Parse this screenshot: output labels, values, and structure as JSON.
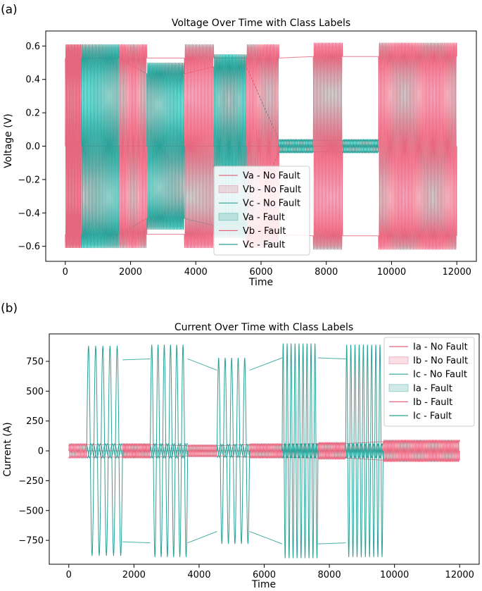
{
  "chart_data": [
    {
      "type": "line",
      "panel_label": "(a)",
      "title": "Voltage Over Time with Class Labels",
      "xlabel": "Time",
      "ylabel": "Voltage (V)",
      "xlim": [
        -600,
        12600
      ],
      "ylim": [
        -0.69,
        0.69
      ],
      "xticks": [
        0,
        2000,
        4000,
        6000,
        8000,
        10000,
        12000
      ],
      "xtick_labels": [
        "0",
        "2000",
        "4000",
        "6000",
        "8000",
        "10000",
        "12000"
      ],
      "yticks": [
        -0.6,
        -0.4,
        -0.2,
        0.0,
        0.2,
        0.4,
        0.6
      ],
      "ytick_labels": [
        "−0.6",
        "−0.4",
        "−0.2",
        "0.0",
        "0.2",
        "0.4",
        "0.6"
      ],
      "legend_position": "lower-center",
      "legend": [
        {
          "label": "Va - No Fault",
          "style": "line",
          "color": "#e5677f"
        },
        {
          "label": "Vb - No Fault",
          "style": "patch",
          "color": "#e5677f"
        },
        {
          "label": "Vc - No Fault",
          "style": "line",
          "color": "#2aa198"
        },
        {
          "label": "Va - Fault",
          "style": "patch",
          "color": "#2aa198"
        },
        {
          "label": "Vb - Fault",
          "style": "line",
          "color": "#e5677f"
        },
        {
          "label": "Vc - Fault",
          "style": "line",
          "color": "#2aa198"
        }
      ],
      "segments": [
        {
          "class": "No Fault",
          "x": [
            0,
            500
          ],
          "amplitude": 0.61,
          "cycles": 6
        },
        {
          "class": "Fault",
          "x": [
            500,
            1650
          ],
          "amplitude": 0.61,
          "cycles": 9
        },
        {
          "class": "No Fault",
          "x": [
            1650,
            2500
          ],
          "amplitude": 0.61,
          "cycles": 7
        },
        {
          "class": "Fault",
          "x": [
            2500,
            3650
          ],
          "amplitude": 0.5,
          "cycles": 9
        },
        {
          "class": "No Fault",
          "x": [
            3650,
            4550
          ],
          "amplitude": 0.61,
          "cycles": 7
        },
        {
          "class": "Fault",
          "x": [
            4550,
            5550
          ],
          "amplitude": 0.55,
          "cycles": 8
        },
        {
          "class": "No Fault",
          "x": [
            5550,
            6550
          ],
          "amplitude": 0.61,
          "cycles": 8
        },
        {
          "class": "Fault",
          "x": [
            6550,
            7600
          ],
          "amplitude": 0.04,
          "cycles": 9
        },
        {
          "class": "No Fault",
          "x": [
            7600,
            8500
          ],
          "amplitude": 0.62,
          "cycles": 7
        },
        {
          "class": "Fault",
          "x": [
            8500,
            9600
          ],
          "amplitude": 0.04,
          "cycles": 9
        },
        {
          "class": "No Fault",
          "x": [
            9600,
            12000
          ],
          "amplitude": 0.62,
          "cycles": 19
        }
      ]
    },
    {
      "type": "line",
      "panel_label": "(b)",
      "title": "Current Over Time with Class Labels",
      "xlabel": "Time",
      "ylabel": "Current (A)",
      "xlim": [
        -600,
        12600
      ],
      "ylim": [
        -950,
        980
      ],
      "xticks": [
        0,
        2000,
        4000,
        6000,
        8000,
        10000,
        12000
      ],
      "xtick_labels": [
        "0",
        "2000",
        "4000",
        "6000",
        "8000",
        "10000",
        "12000"
      ],
      "yticks": [
        -750,
        -500,
        -250,
        0,
        250,
        500,
        750
      ],
      "ytick_labels": [
        "−750",
        "−500",
        "−250",
        "0",
        "250",
        "500",
        "750"
      ],
      "legend_position": "upper-right",
      "legend": [
        {
          "label": "Ia - No Fault",
          "style": "line",
          "color": "#e5677f"
        },
        {
          "label": "Ib - No Fault",
          "style": "patch",
          "color": "#e5677f"
        },
        {
          "label": "Ic - No Fault",
          "style": "line",
          "color": "#2aa198"
        },
        {
          "label": "Ia - Fault",
          "style": "patch",
          "color": "#2aa198"
        },
        {
          "label": "Ib - Fault",
          "style": "line",
          "color": "#e5677f"
        },
        {
          "label": "Ic - Fault",
          "style": "line",
          "color": "#2aa198"
        }
      ],
      "segments": [
        {
          "class": "No Fault",
          "x": [
            0,
            550
          ],
          "amplitude": 60,
          "cycles": 4
        },
        {
          "class": "Fault",
          "x": [
            550,
            1650
          ],
          "amplitude": 880,
          "cycles": 5
        },
        {
          "class": "No Fault",
          "x": [
            1650,
            2500
          ],
          "amplitude": 60,
          "cycles": 7
        },
        {
          "class": "Fault",
          "x": [
            2500,
            3650
          ],
          "amplitude": 890,
          "cycles": 6
        },
        {
          "class": "No Fault",
          "x": [
            3650,
            4550
          ],
          "amplitude": 50,
          "cycles": 7
        },
        {
          "class": "Fault",
          "x": [
            4550,
            5550
          ],
          "amplitude": 780,
          "cycles": 5
        },
        {
          "class": "No Fault",
          "x": [
            5550,
            6550
          ],
          "amplitude": 60,
          "cycles": 8
        },
        {
          "class": "Fault",
          "x": [
            6550,
            7650
          ],
          "amplitude": 900,
          "cycles": 9
        },
        {
          "class": "No Fault",
          "x": [
            7650,
            8500
          ],
          "amplitude": 70,
          "cycles": 7
        },
        {
          "class": "Fault",
          "x": [
            8500,
            9650
          ],
          "amplitude": 890,
          "cycles": 9
        },
        {
          "class": "No Fault",
          "x": [
            9650,
            12000
          ],
          "amplitude": 90,
          "cycles": 19
        }
      ]
    }
  ],
  "colors": {
    "no_fault": "#e5677f",
    "fault": "#2aa198",
    "axis": "#000000",
    "legend_border": "#cccccc"
  }
}
